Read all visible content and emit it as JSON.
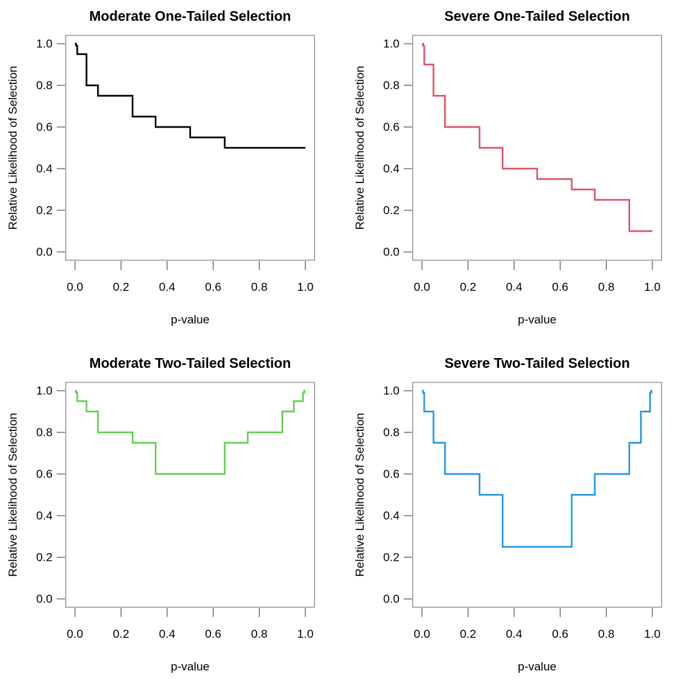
{
  "figure": {
    "background": "#ffffff",
    "box_color": "#7d7d7d",
    "tick_color": "#4d4d4d",
    "text_color": "#000000",
    "layout": "2x2-grid",
    "grid_lines": false,
    "legend": false
  },
  "chart_data": [
    {
      "type": "line",
      "line_style": "step",
      "title": "Moderate One-Tailed Selection",
      "xlabel": "p-value",
      "ylabel": "Relative Likelihood of Selection",
      "line_color": "#000000",
      "xlim": [
        -0.04,
        1.04
      ],
      "ylim": [
        -0.04,
        1.04
      ],
      "xticks": [
        0.0,
        0.2,
        0.4,
        0.6,
        0.8,
        1.0
      ],
      "yticks": [
        0.0,
        0.2,
        0.4,
        0.6,
        0.8,
        1.0
      ],
      "x_cutpoints": [
        0,
        0.005,
        0.01,
        0.05,
        0.1,
        0.25,
        0.35,
        0.5,
        0.65,
        0.75,
        0.9,
        0.95,
        0.99,
        0.995,
        1.0
      ],
      "step_weights": [
        1.0,
        0.99,
        0.95,
        0.8,
        0.75,
        0.65,
        0.6,
        0.55,
        0.5,
        0.5,
        0.5,
        0.5,
        0.5,
        0.5
      ]
    },
    {
      "type": "line",
      "line_style": "step",
      "title": "Severe One-Tailed Selection",
      "xlabel": "p-value",
      "ylabel": "Relative Likelihood of Selection",
      "line_color": "#DF536B",
      "xlim": [
        -0.04,
        1.04
      ],
      "ylim": [
        -0.04,
        1.04
      ],
      "xticks": [
        0.0,
        0.2,
        0.4,
        0.6,
        0.8,
        1.0
      ],
      "yticks": [
        0.0,
        0.2,
        0.4,
        0.6,
        0.8,
        1.0
      ],
      "x_cutpoints": [
        0,
        0.005,
        0.01,
        0.05,
        0.1,
        0.25,
        0.35,
        0.5,
        0.65,
        0.75,
        0.9,
        0.95,
        0.99,
        0.995,
        1.0
      ],
      "step_weights": [
        1.0,
        0.99,
        0.9,
        0.75,
        0.6,
        0.5,
        0.4,
        0.35,
        0.3,
        0.25,
        0.1,
        0.1,
        0.1,
        0.1
      ]
    },
    {
      "type": "line",
      "line_style": "step",
      "title": "Moderate Two-Tailed Selection",
      "xlabel": "p-value",
      "ylabel": "Relative Likelihood of Selection",
      "line_color": "#61D04F",
      "xlim": [
        -0.04,
        1.04
      ],
      "ylim": [
        -0.04,
        1.04
      ],
      "xticks": [
        0.0,
        0.2,
        0.4,
        0.6,
        0.8,
        1.0
      ],
      "yticks": [
        0.0,
        0.2,
        0.4,
        0.6,
        0.8,
        1.0
      ],
      "x_cutpoints": [
        0,
        0.005,
        0.01,
        0.05,
        0.1,
        0.25,
        0.35,
        0.5,
        0.65,
        0.75,
        0.9,
        0.95,
        0.99,
        0.995,
        1.0
      ],
      "step_weights": [
        1.0,
        0.99,
        0.95,
        0.9,
        0.8,
        0.75,
        0.6,
        0.6,
        0.75,
        0.8,
        0.9,
        0.95,
        0.99,
        1.0
      ]
    },
    {
      "type": "line",
      "line_style": "step",
      "title": "Severe Two-Tailed Selection",
      "xlabel": "p-value",
      "ylabel": "Relative Likelihood of Selection",
      "line_color": "#2297E6",
      "xlim": [
        -0.04,
        1.04
      ],
      "ylim": [
        -0.04,
        1.04
      ],
      "xticks": [
        0.0,
        0.2,
        0.4,
        0.6,
        0.8,
        1.0
      ],
      "yticks": [
        0.0,
        0.2,
        0.4,
        0.6,
        0.8,
        1.0
      ],
      "x_cutpoints": [
        0,
        0.005,
        0.01,
        0.05,
        0.1,
        0.25,
        0.35,
        0.5,
        0.65,
        0.75,
        0.9,
        0.95,
        0.99,
        0.995,
        1.0
      ],
      "step_weights": [
        1.0,
        0.99,
        0.9,
        0.75,
        0.6,
        0.5,
        0.25,
        0.25,
        0.5,
        0.6,
        0.75,
        0.9,
        0.99,
        1.0
      ]
    }
  ]
}
